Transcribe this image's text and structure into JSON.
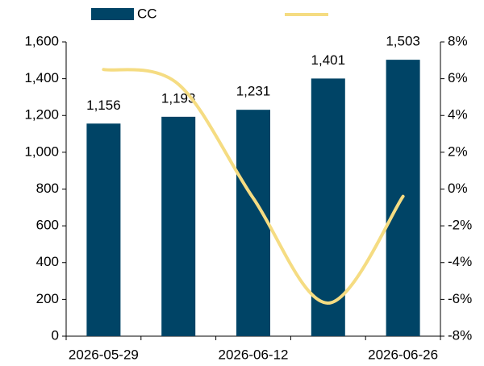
{
  "chart_data": {
    "type": "bar_line",
    "categories": [
      "2026-05-29",
      null,
      "2026-06-12",
      null,
      "2026-06-26"
    ],
    "series": [
      {
        "name": "CC",
        "type": "bar",
        "color": "#004466",
        "values": [
          1156,
          1193,
          1231,
          1401,
          1503
        ],
        "value_labels": [
          "1,156",
          "1,193",
          "1,231",
          "1,401",
          "1,503"
        ]
      },
      {
        "type": "line",
        "axis": "y2",
        "color": "#f5dc82",
        "smooth": true,
        "values": [
          6.5,
          5.7,
          -0.5,
          -6.2,
          -0.4
        ]
      }
    ],
    "ylim": [
      0,
      1600
    ],
    "yticks": [
      0,
      200,
      400,
      600,
      800,
      {
        "value": 1000,
        "label": "1,000"
      },
      {
        "value": 1200,
        "label": "1,200"
      },
      {
        "value": 1400,
        "label": "1,400"
      },
      {
        "value": 1600,
        "label": "1,600"
      }
    ],
    "y2lim": [
      -8,
      8
    ],
    "y2ticks": [
      {
        "value": -8,
        "label": "-8%"
      },
      {
        "value": -6,
        "label": "-6%"
      },
      {
        "value": -4,
        "label": "-4%"
      },
      {
        "value": -2,
        "label": "-2%"
      },
      {
        "value": 0,
        "label": "0%"
      },
      {
        "value": 2,
        "label": "2%"
      },
      {
        "value": 4,
        "label": "4%"
      },
      {
        "value": 6,
        "label": "6%"
      },
      {
        "value": 8,
        "label": "8%"
      }
    ],
    "grid": false
  }
}
